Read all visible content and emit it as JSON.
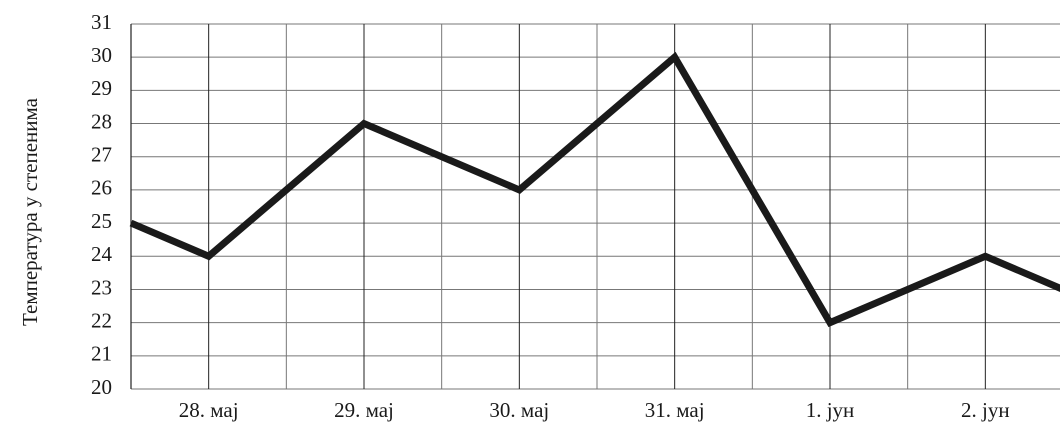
{
  "chart_data": {
    "type": "line",
    "ylabel": "Температура у степенима",
    "x": [
      -0.5,
      0,
      1,
      2,
      3,
      4,
      5,
      5.5
    ],
    "series": [
      {
        "name": "Температура",
        "color": "#1a1a1a",
        "values": [
          25,
          24,
          28,
          26,
          30,
          22,
          24,
          23
        ]
      }
    ],
    "xlim": [
      -0.5,
      5.5
    ],
    "xticks": [
      {
        "value": 0,
        "label": "28. мај"
      },
      {
        "value": 1,
        "label": "29. мај"
      },
      {
        "value": 2,
        "label": "30. мај"
      },
      {
        "value": 3,
        "label": "31. мај"
      },
      {
        "value": 4,
        "label": "1. јун"
      },
      {
        "value": 5,
        "label": "2. јун"
      }
    ],
    "xminorticks": [
      -0.5,
      0.5,
      1.5,
      2.5,
      3.5,
      4.5,
      5.5
    ],
    "ylim": [
      20,
      31
    ],
    "yticks": [
      20,
      21,
      22,
      23,
      24,
      25,
      26,
      27,
      28,
      29,
      30,
      31
    ],
    "grid": true
  }
}
